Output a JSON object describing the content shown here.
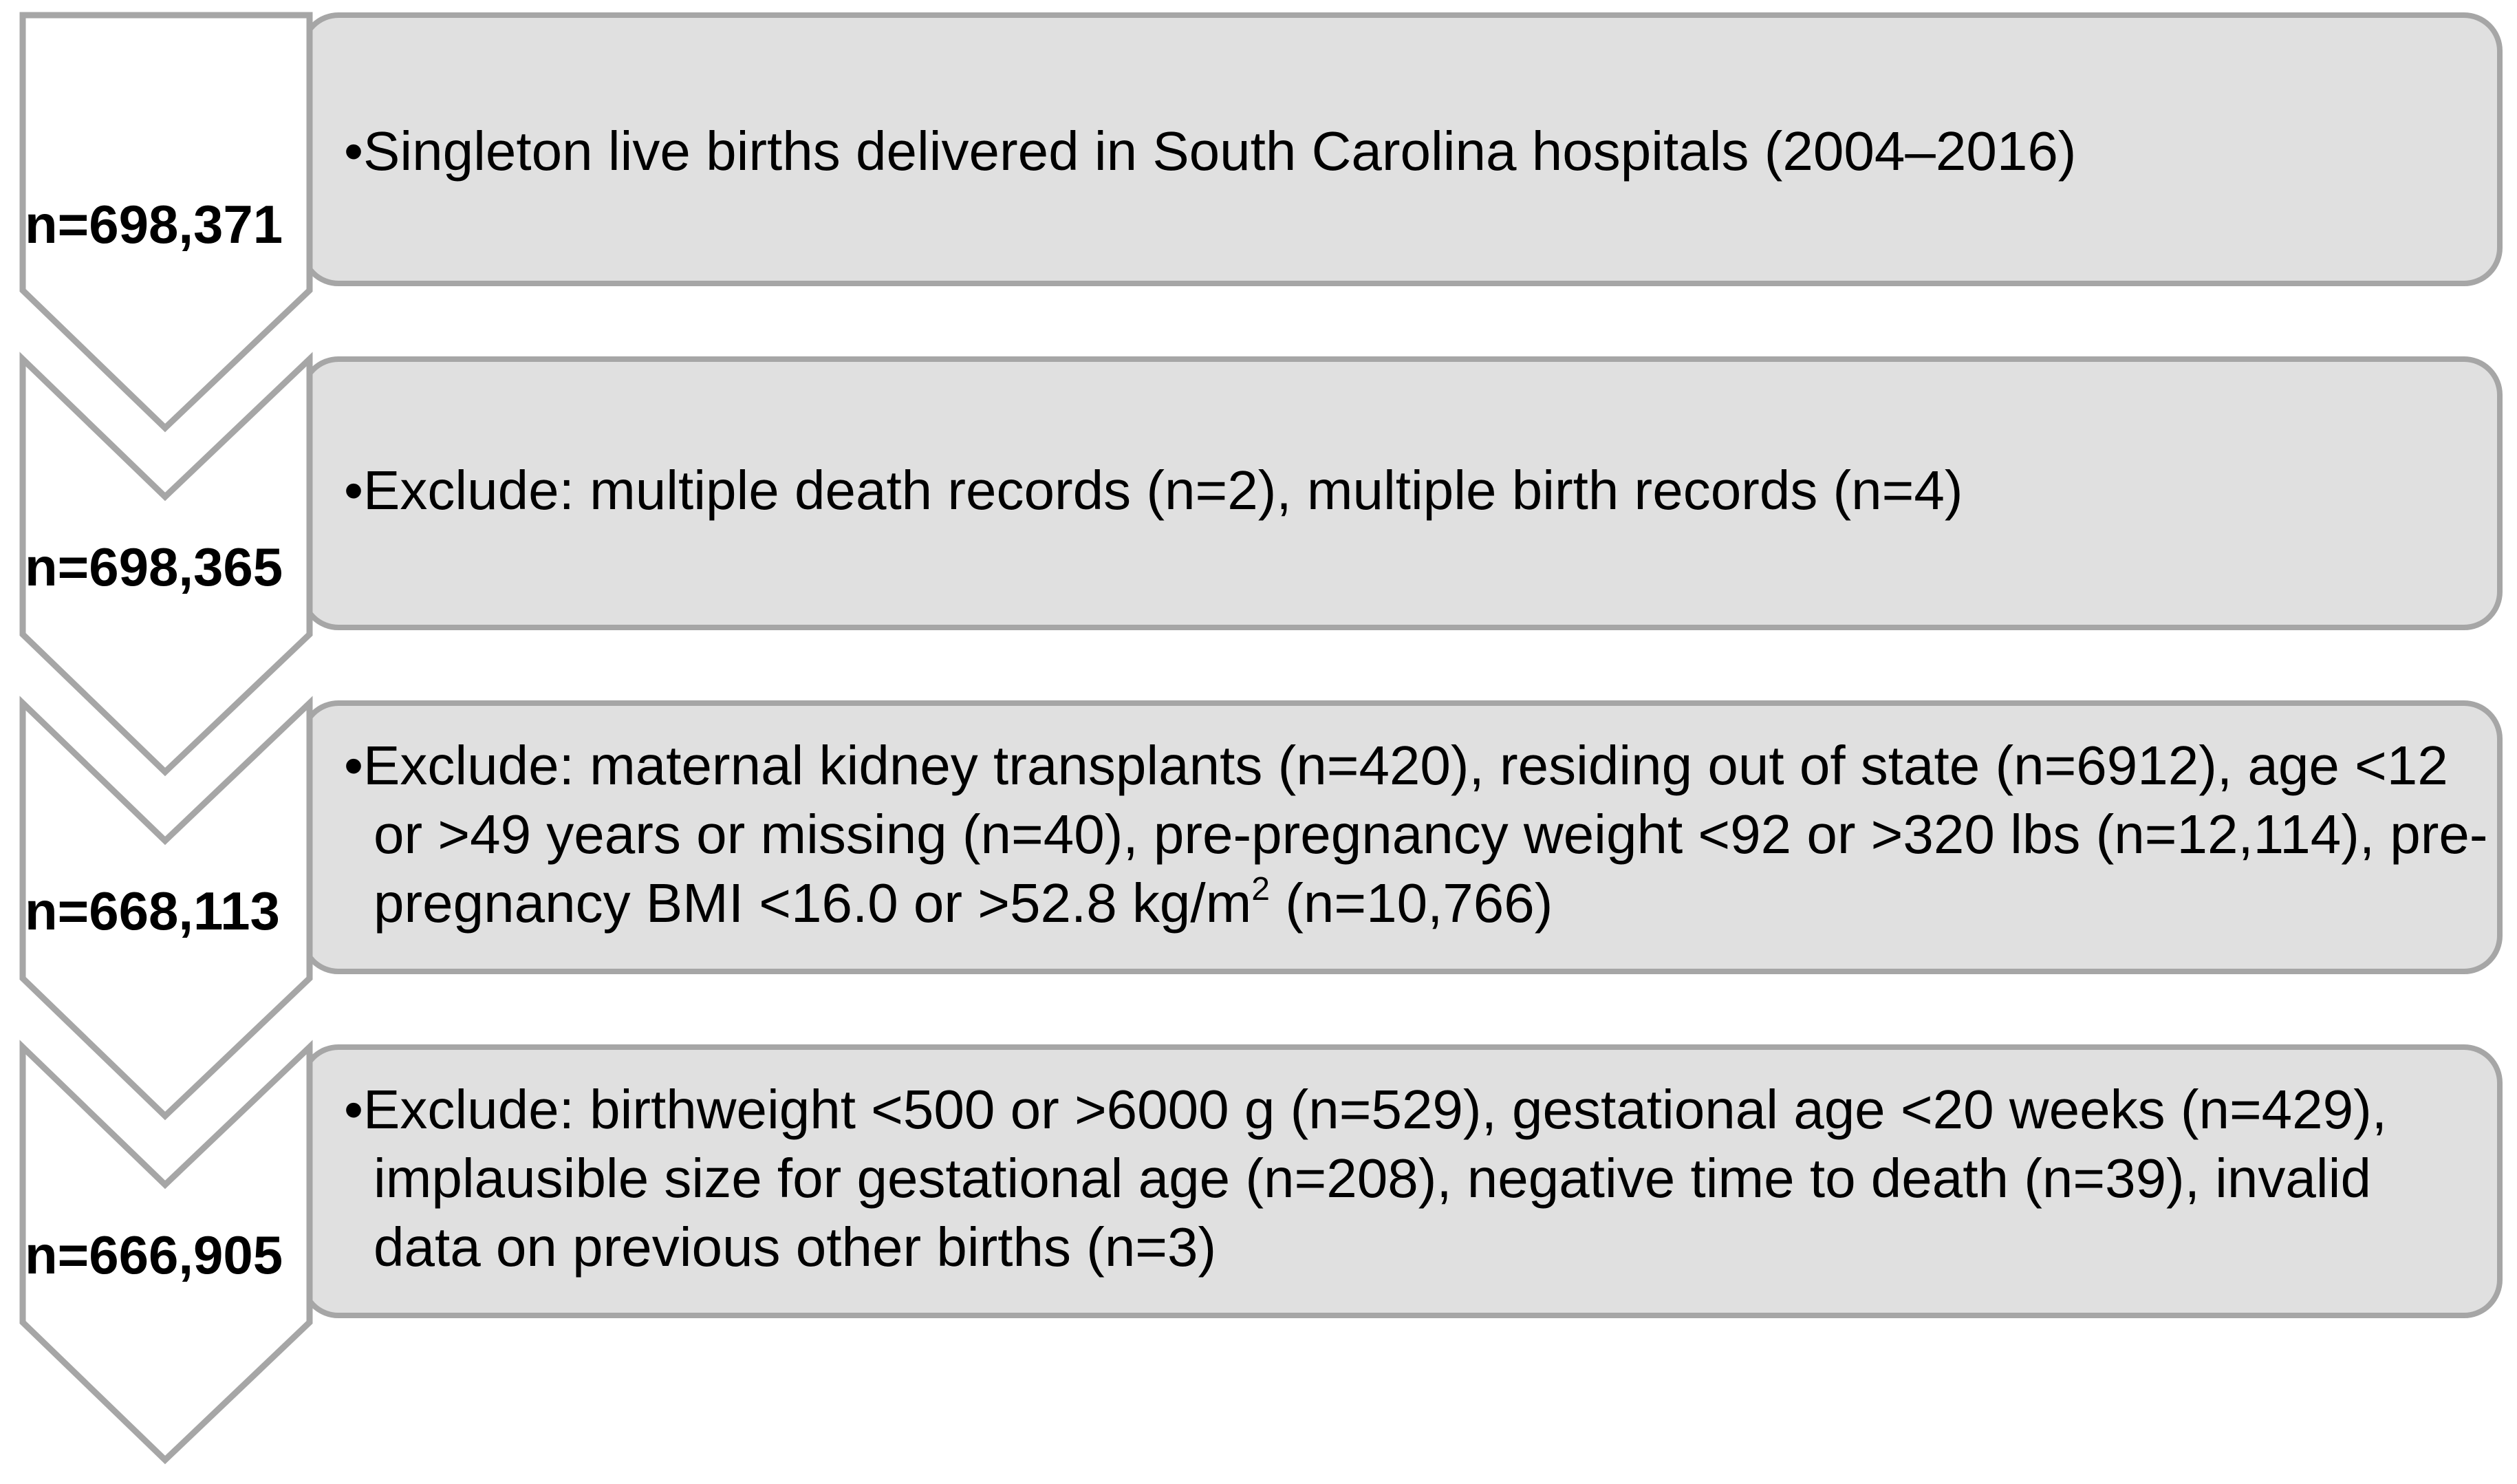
{
  "steps": [
    {
      "count": "n=698,371",
      "text": "Singleton live births delivered in South Carolina hospitals (2004–2016)"
    },
    {
      "count": "n=698,365",
      "text": "Exclude: multiple death records (n=2), multiple birth records (n=4)"
    },
    {
      "count": "n=668,113",
      "text_before_sup": "Exclude: maternal kidney transplants (n=420), residing out of state (n=6912), age <12 or >49 years or missing (n=40), pre-pregnancy weight <92 or >320 lbs (n=12,114), pre-pregnancy BMI <16.0 or >52.8 kg/m",
      "sup": "2",
      "text_after_sup": " (n=10,766)"
    },
    {
      "count": "n=666,905",
      "text": "Exclude: birthweight <500 or >6000 g (n=529), gestational age <20 weeks (n=429), implausible size for gestational age (n=208), negative time to death (n=39), invalid data on previous other births (n=3)"
    }
  ],
  "bullet_glyph": "•",
  "colors": {
    "box_fill": "#e0e0e0",
    "outline": "#a6a6a6",
    "chevron_fill": "#ffffff",
    "text": "#000000"
  }
}
